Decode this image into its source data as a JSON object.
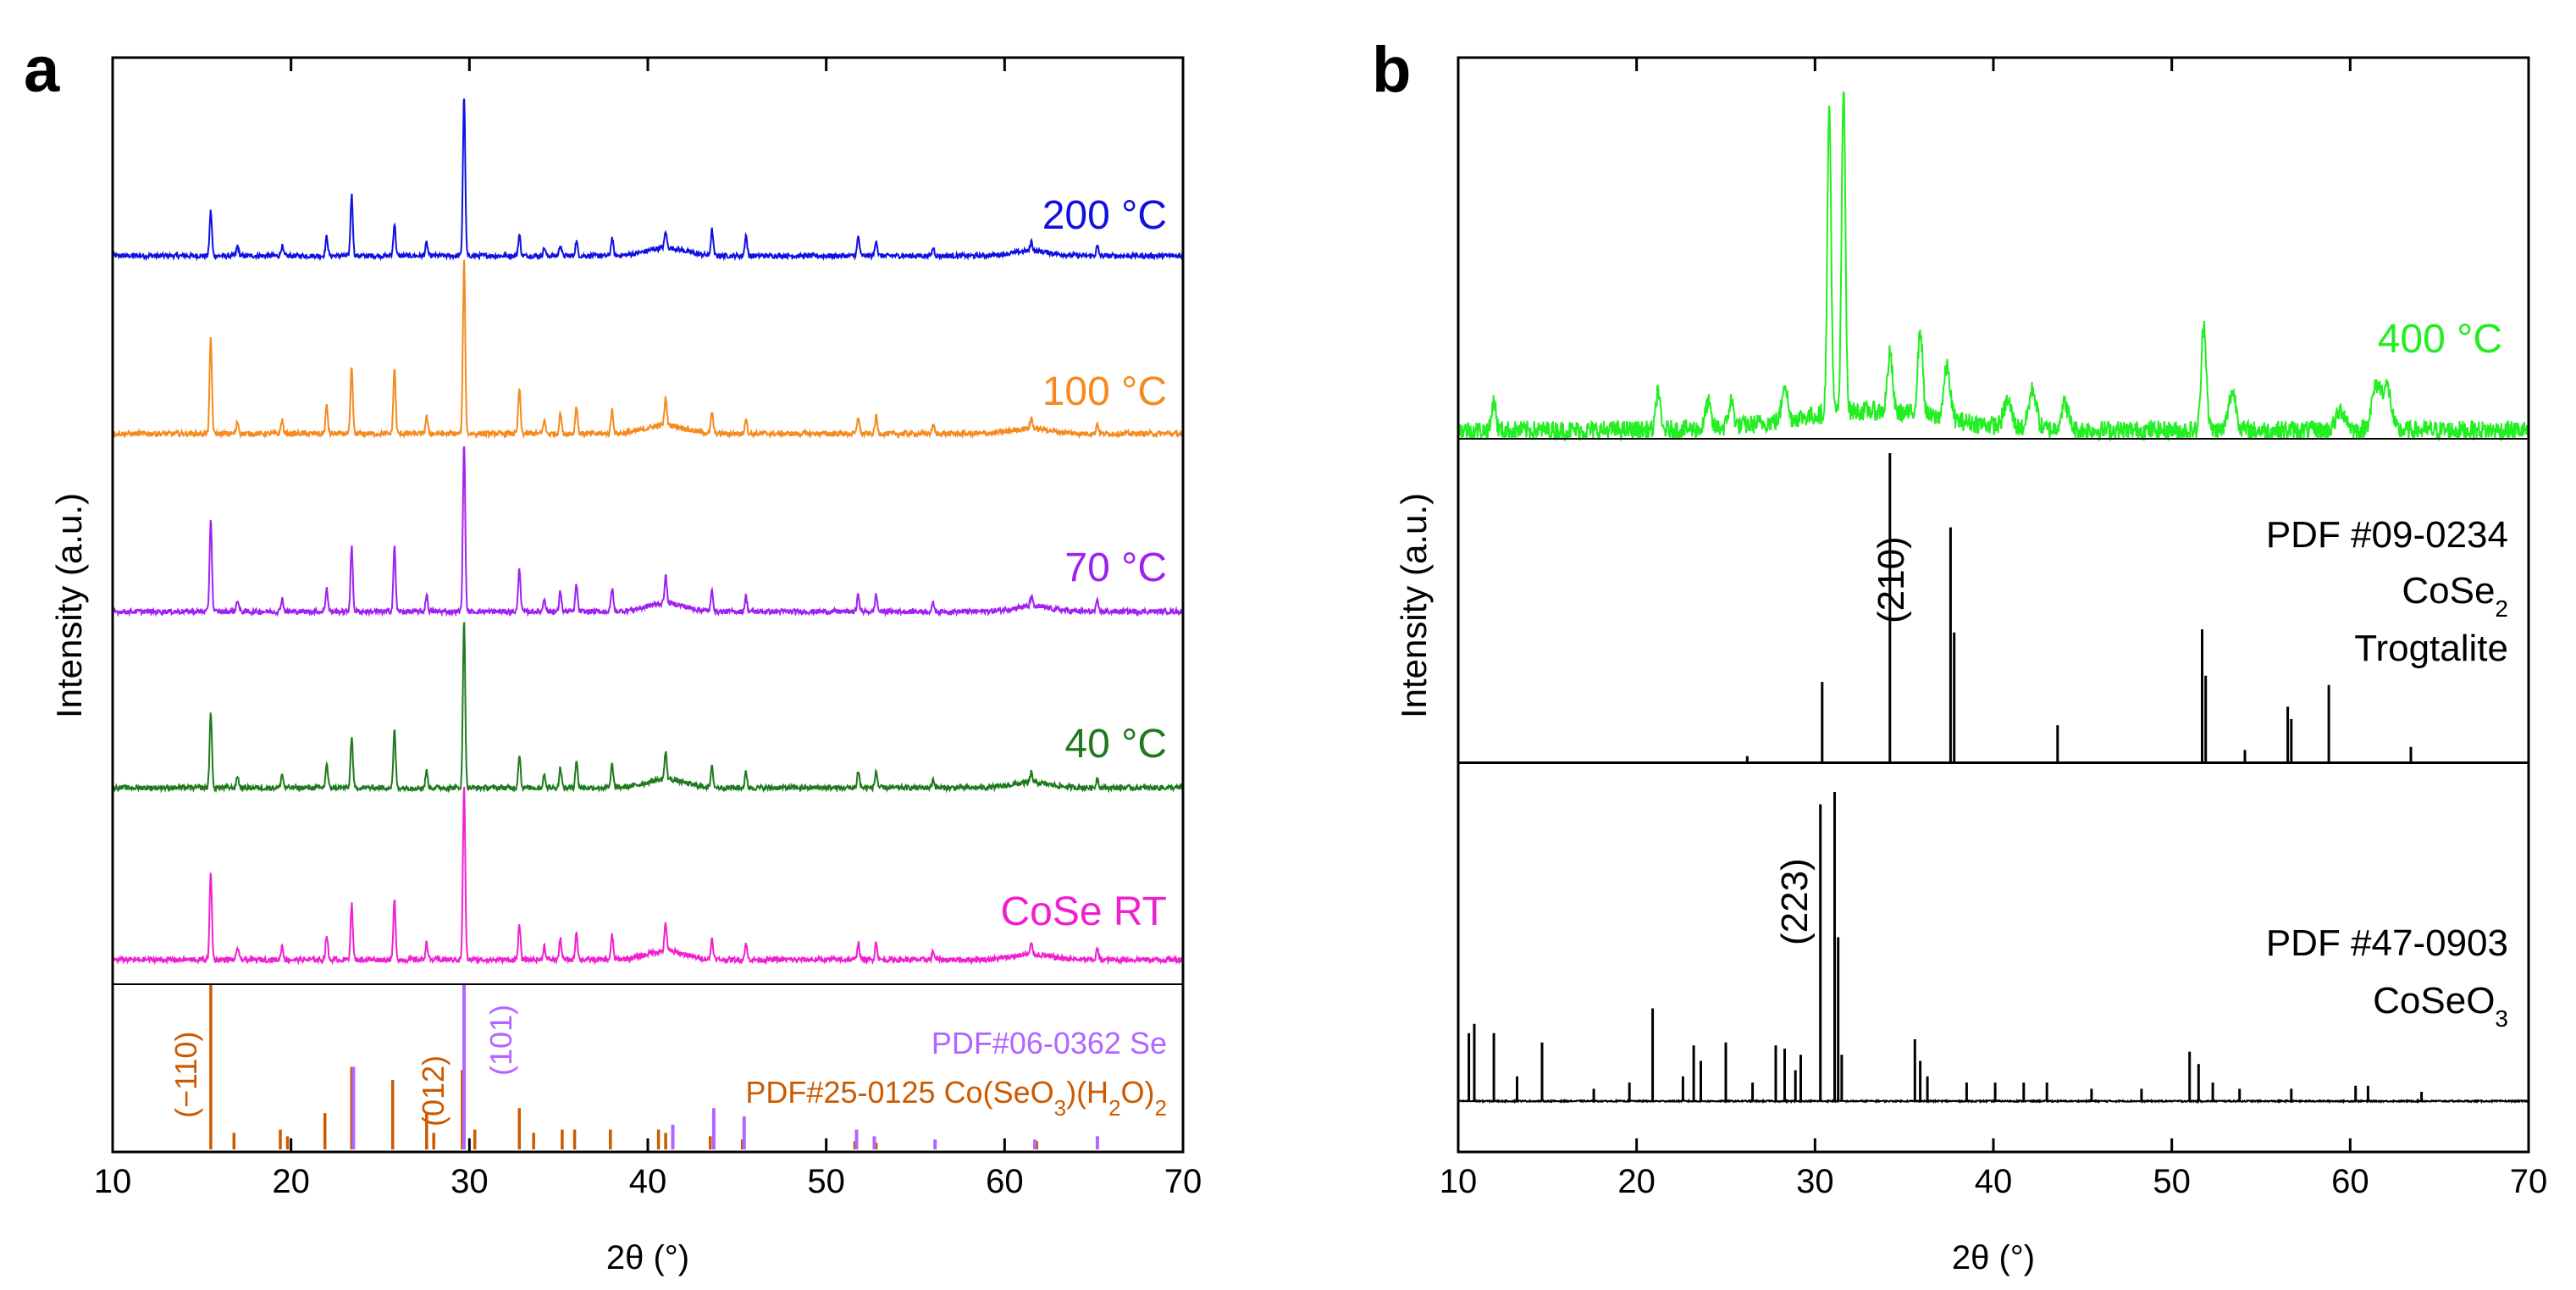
{
  "chart_data": [
    {
      "panel_label": "a",
      "type": "line",
      "title": "",
      "xlabel": "2θ (°)",
      "ylabel": "Intensity (a.u.)",
      "xlim": [
        10,
        70
      ],
      "xticks": [
        10,
        20,
        30,
        40,
        50,
        60,
        70
      ],
      "grid": false,
      "series": [
        {
          "name": "200 °C",
          "color": "#1010e0",
          "main_peaks": [
            15.5,
            17.0,
            19.5,
            22.0,
            23.4,
            25.8,
            27.6,
            29.7,
            32.8,
            34.2,
            35.1,
            36.0,
            38.0,
            41.0,
            43.6,
            45.5,
            51.8,
            52.8,
            56.0,
            61.5,
            65.2
          ]
        },
        {
          "name": "100 °C",
          "color": "#f58a1f",
          "main_peaks": [
            15.5,
            17.0,
            19.5,
            22.0,
            23.4,
            25.8,
            27.6,
            29.7,
            32.8,
            34.2,
            35.1,
            36.0,
            38.0,
            41.0,
            43.6,
            45.5,
            51.8,
            52.8,
            56.0,
            61.5,
            65.2
          ]
        },
        {
          "name": "70 °C",
          "color": "#a020f0",
          "main_peaks": [
            15.5,
            17.0,
            19.5,
            22.0,
            23.4,
            25.8,
            27.6,
            29.7,
            32.8,
            34.2,
            35.1,
            36.0,
            38.0,
            41.0,
            43.6,
            45.5,
            51.8,
            52.8,
            56.0,
            61.5,
            65.2
          ]
        },
        {
          "name": "40 °C",
          "color": "#1f7a1f",
          "main_peaks": [
            15.5,
            17.0,
            19.5,
            22.0,
            23.4,
            25.8,
            27.6,
            29.7,
            32.8,
            34.2,
            35.1,
            36.0,
            38.0,
            41.0,
            43.6,
            45.5,
            51.8,
            52.8,
            56.0,
            61.5,
            65.2
          ]
        },
        {
          "name": "CoSe RT",
          "color": "#f020d0",
          "main_peaks": [
            15.5,
            17.0,
            19.5,
            22.0,
            23.4,
            25.8,
            27.6,
            29.7,
            32.8,
            34.2,
            35.1,
            36.0,
            38.0,
            41.0,
            43.6,
            45.5,
            51.8,
            52.8,
            56.0,
            61.5,
            65.2
          ]
        }
      ],
      "references": [
        {
          "name": "PDF#06-0362 Se",
          "color": "#b266ff",
          "peaks": [
            {
              "x": 23.5,
              "h": 0.5
            },
            {
              "x": 29.7,
              "h": 1.0
            },
            {
              "x": 41.4,
              "h": 0.15
            },
            {
              "x": 43.7,
              "h": 0.25
            },
            {
              "x": 45.4,
              "h": 0.2
            },
            {
              "x": 51.7,
              "h": 0.12
            },
            {
              "x": 52.7,
              "h": 0.08
            },
            {
              "x": 56.1,
              "h": 0.06
            },
            {
              "x": 61.7,
              "h": 0.06
            },
            {
              "x": 65.2,
              "h": 0.08
            }
          ]
        },
        {
          "name_html": "PDF#25-0125 Co(SeO<tspan baseline-shift=\"sub\" font-size=\"26\">3</tspan>)(H<tspan baseline-shift=\"sub\" font-size=\"26\">2</tspan>O)<tspan baseline-shift=\"sub\" font-size=\"26\">2</tspan>",
          "color": "#cc5a00",
          "peaks": [
            {
              "x": 15.5,
              "h": 1.0
            },
            {
              "x": 16.8,
              "h": 0.1
            },
            {
              "x": 19.4,
              "h": 0.12
            },
            {
              "x": 19.8,
              "h": 0.08
            },
            {
              "x": 21.9,
              "h": 0.22
            },
            {
              "x": 23.4,
              "h": 0.5
            },
            {
              "x": 25.7,
              "h": 0.42
            },
            {
              "x": 27.6,
              "h": 0.22
            },
            {
              "x": 28.0,
              "h": 0.1
            },
            {
              "x": 29.6,
              "h": 0.48
            },
            {
              "x": 30.3,
              "h": 0.12
            },
            {
              "x": 32.8,
              "h": 0.25
            },
            {
              "x": 33.6,
              "h": 0.1
            },
            {
              "x": 35.2,
              "h": 0.12
            },
            {
              "x": 35.9,
              "h": 0.12
            },
            {
              "x": 37.9,
              "h": 0.12
            },
            {
              "x": 40.6,
              "h": 0.12
            },
            {
              "x": 41.0,
              "h": 0.1
            },
            {
              "x": 43.5,
              "h": 0.08
            },
            {
              "x": 45.3,
              "h": 0.06
            },
            {
              "x": 51.6,
              "h": 0.05
            },
            {
              "x": 52.8,
              "h": 0.04
            },
            {
              "x": 61.8,
              "h": 0.05
            }
          ]
        }
      ],
      "annotations": [
        "(−110)",
        "(012)",
        "(101)"
      ]
    },
    {
      "panel_label": "b",
      "type": "line",
      "title": "",
      "xlabel": "2θ (°)",
      "ylabel": "Intensity (a.u.)",
      "xlim": [
        10,
        70
      ],
      "xticks": [
        10,
        20,
        30,
        40,
        50,
        60,
        70
      ],
      "grid": false,
      "series": [
        {
          "name": "400 °C",
          "color": "#22ee22",
          "main_peaks": [
            12.0,
            21.2,
            28.3,
            30.8,
            31.5,
            34.2,
            35.9,
            37.5,
            42.2,
            51.8,
            53.5,
            61.5
          ]
        }
      ],
      "references": [
        {
          "name": "PDF #09-0234",
          "formula_html": "CoSe<tspan baseline-shift=\"sub\" font-size=\"28\">2</tspan>",
          "mineral": "Trogtalite",
          "annotation": "(210)",
          "color": "#000000",
          "peaks": [
            {
              "x": 26.2,
              "h": 0.02
            },
            {
              "x": 30.4,
              "h": 0.26
            },
            {
              "x": 34.2,
              "h": 1.0
            },
            {
              "x": 37.6,
              "h": 0.76
            },
            {
              "x": 37.8,
              "h": 0.42
            },
            {
              "x": 43.6,
              "h": 0.12
            },
            {
              "x": 51.7,
              "h": 0.43
            },
            {
              "x": 51.9,
              "h": 0.28
            },
            {
              "x": 54.1,
              "h": 0.04
            },
            {
              "x": 56.5,
              "h": 0.18
            },
            {
              "x": 56.7,
              "h": 0.14
            },
            {
              "x": 58.8,
              "h": 0.25
            },
            {
              "x": 63.4,
              "h": 0.05
            }
          ]
        },
        {
          "name": "PDF #47-0903",
          "formula_html": "CoSeO<tspan baseline-shift=\"sub\" font-size=\"28\">3</tspan>",
          "annotation": "(223)",
          "color": "#000000",
          "peaks": [
            {
              "x": 10.6,
              "h": 0.22
            },
            {
              "x": 10.9,
              "h": 0.25
            },
            {
              "x": 12.0,
              "h": 0.22
            },
            {
              "x": 13.3,
              "h": 0.08
            },
            {
              "x": 14.7,
              "h": 0.19
            },
            {
              "x": 17.6,
              "h": 0.04
            },
            {
              "x": 19.6,
              "h": 0.06
            },
            {
              "x": 20.9,
              "h": 0.3
            },
            {
              "x": 22.6,
              "h": 0.08
            },
            {
              "x": 23.2,
              "h": 0.18
            },
            {
              "x": 23.6,
              "h": 0.13
            },
            {
              "x": 25.0,
              "h": 0.19
            },
            {
              "x": 26.5,
              "h": 0.06
            },
            {
              "x": 27.8,
              "h": 0.18
            },
            {
              "x": 28.3,
              "h": 0.17
            },
            {
              "x": 28.9,
              "h": 0.1
            },
            {
              "x": 29.2,
              "h": 0.15
            },
            {
              "x": 30.3,
              "h": 0.96
            },
            {
              "x": 31.1,
              "h": 1.0
            },
            {
              "x": 31.3,
              "h": 0.53
            },
            {
              "x": 31.5,
              "h": 0.15
            },
            {
              "x": 35.6,
              "h": 0.2
            },
            {
              "x": 35.9,
              "h": 0.13
            },
            {
              "x": 36.3,
              "h": 0.08
            },
            {
              "x": 38.5,
              "h": 0.06
            },
            {
              "x": 40.1,
              "h": 0.06
            },
            {
              "x": 41.7,
              "h": 0.06
            },
            {
              "x": 43.0,
              "h": 0.06
            },
            {
              "x": 45.5,
              "h": 0.04
            },
            {
              "x": 48.3,
              "h": 0.04
            },
            {
              "x": 51.0,
              "h": 0.16
            },
            {
              "x": 51.5,
              "h": 0.12
            },
            {
              "x": 52.3,
              "h": 0.06
            },
            {
              "x": 53.8,
              "h": 0.04
            },
            {
              "x": 56.7,
              "h": 0.04
            },
            {
              "x": 60.3,
              "h": 0.05
            },
            {
              "x": 61.0,
              "h": 0.05
            },
            {
              "x": 64.0,
              "h": 0.03
            }
          ]
        }
      ]
    }
  ]
}
